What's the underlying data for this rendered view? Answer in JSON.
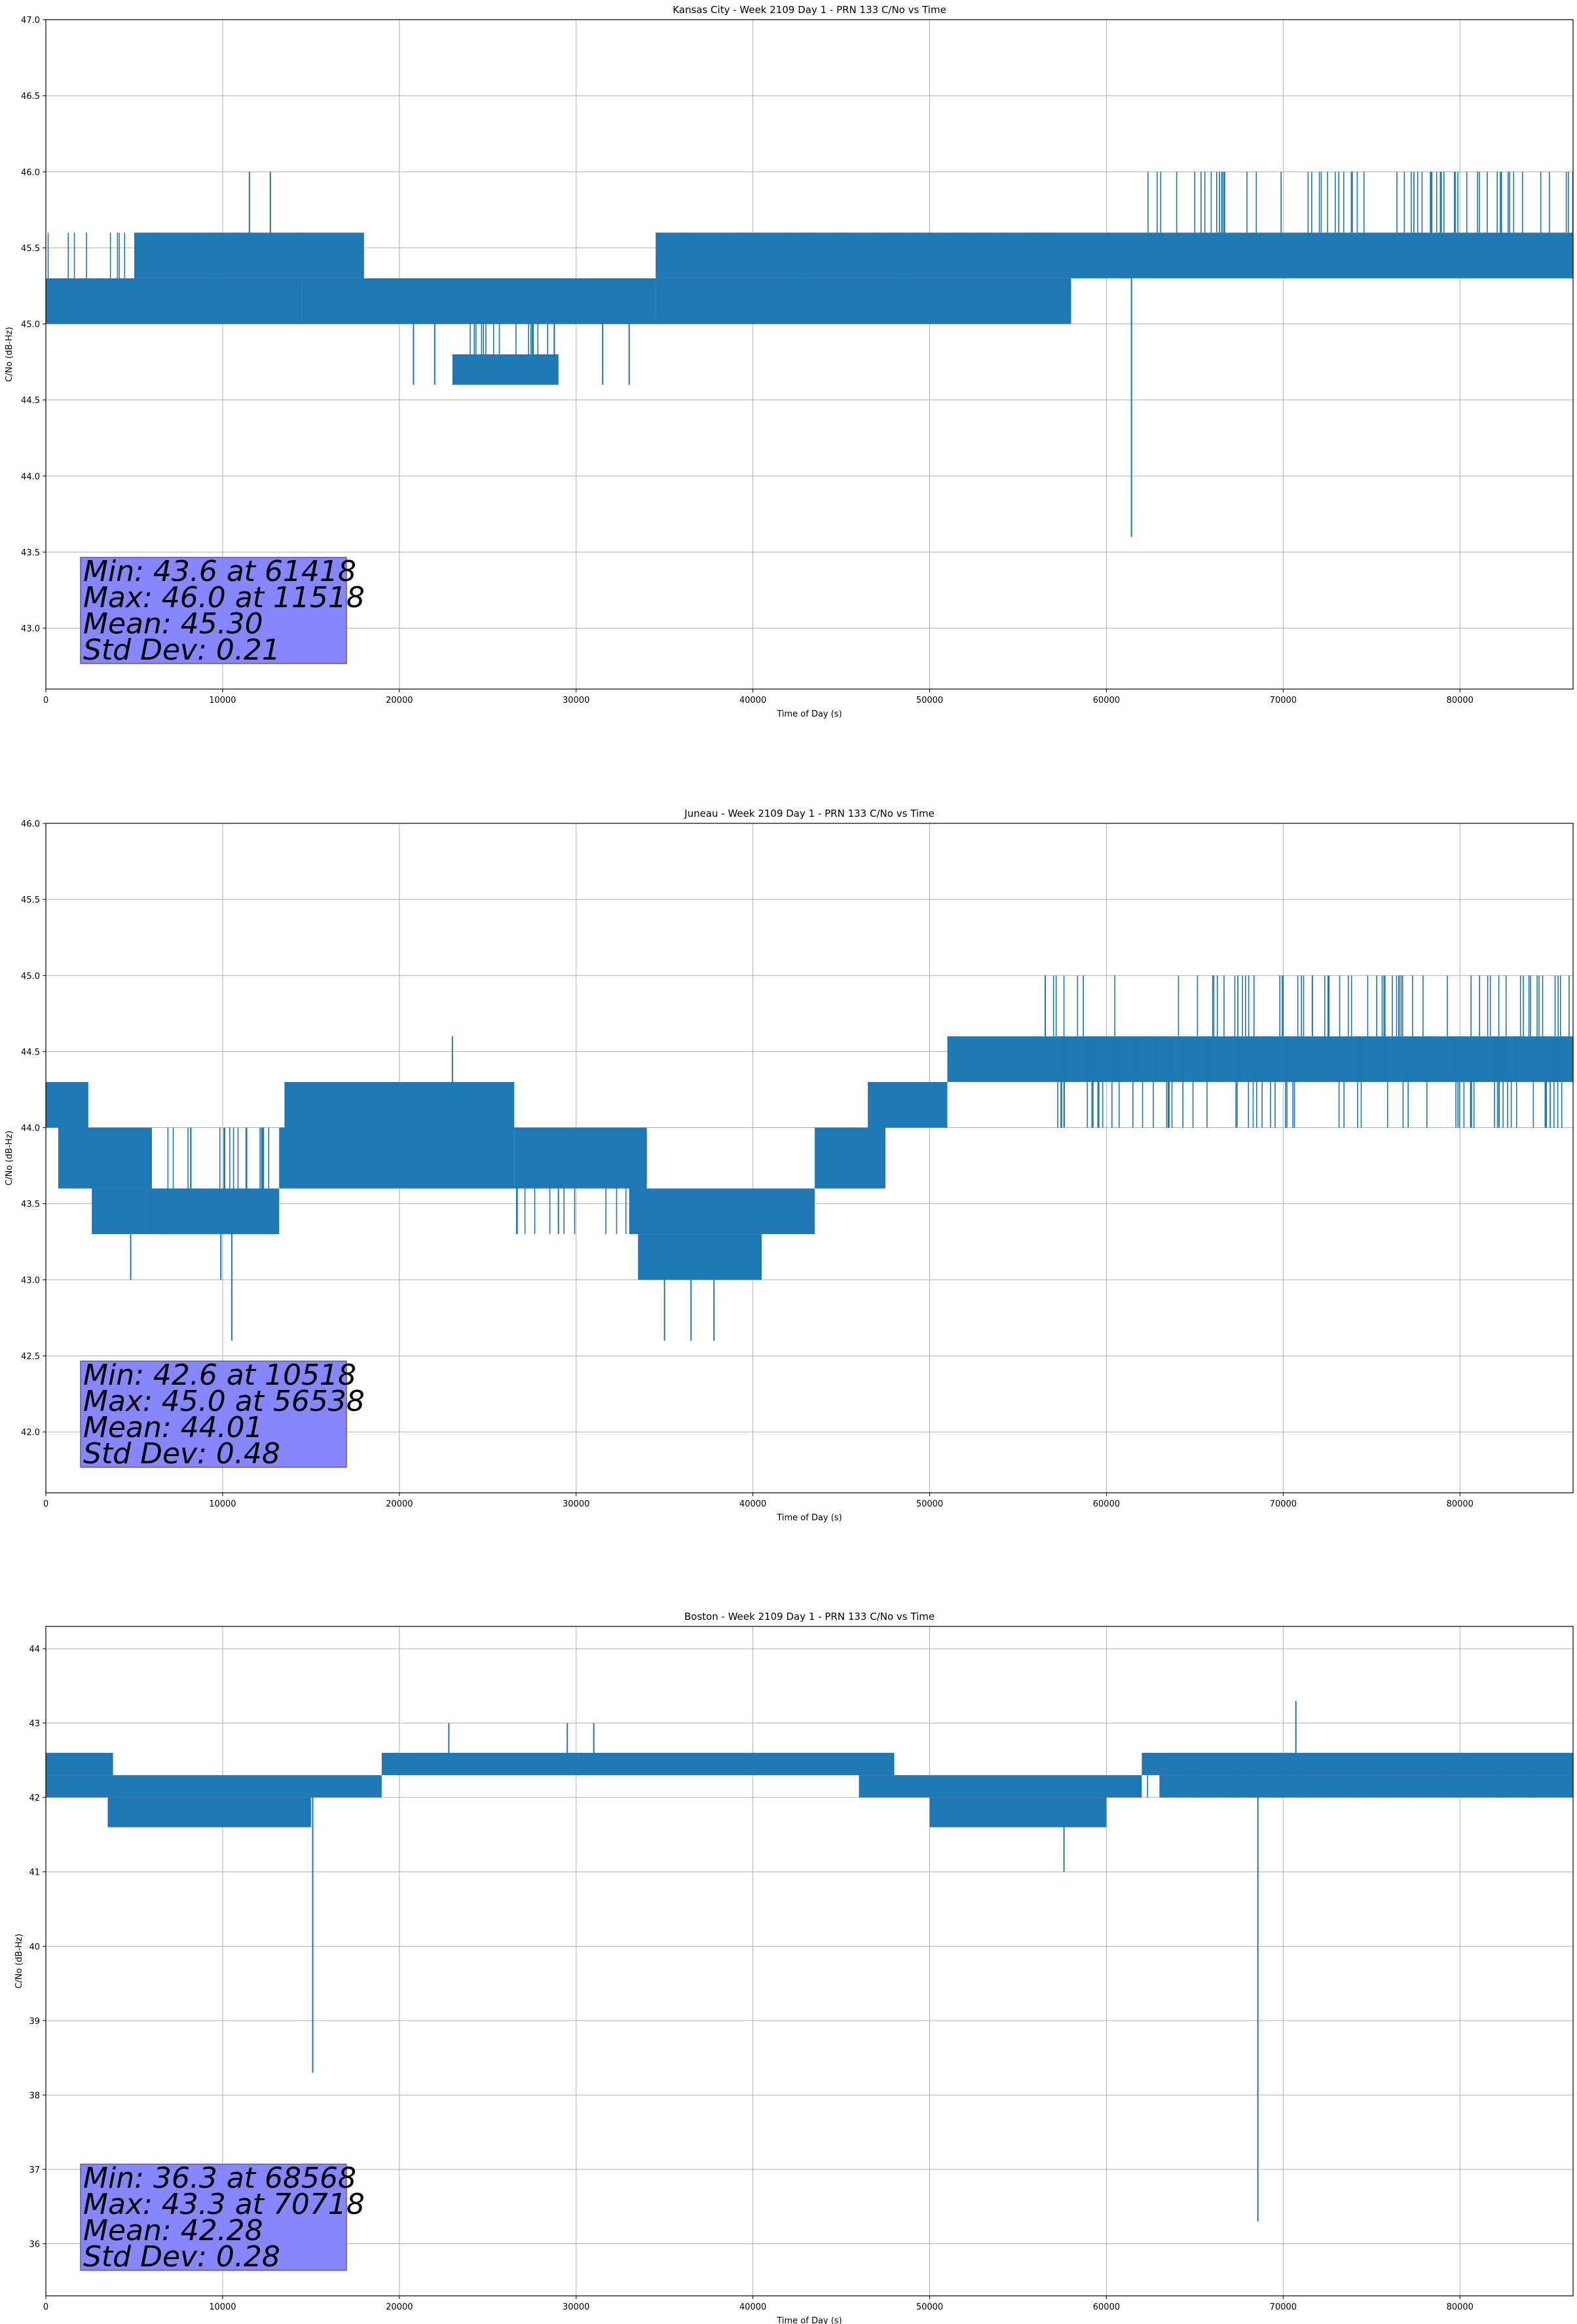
{
  "colors": {
    "series": "#1f77b4",
    "grid": "#b0b0b0",
    "stats_box": "#8080ff",
    "stats_box_edge": "#5a5aa0"
  },
  "chart_data": [
    {
      "type": "line",
      "title": "Kansas City - Week 2109 Day 1 - PRN 133 C/No vs Time",
      "xlabel": "Time of Day (s)",
      "ylabel": "C/No (dB-Hz)",
      "xlim": [
        0,
        86400
      ],
      "ylim": [
        42.6,
        47.0
      ],
      "xticks": [
        0,
        10000,
        20000,
        30000,
        40000,
        50000,
        60000,
        70000,
        80000
      ],
      "yticks": [
        "43.0",
        "43.5",
        "44.0",
        "44.5",
        "45.0",
        "45.5",
        "46.0",
        "46.5",
        "47.0"
      ],
      "grid": true,
      "series": [
        {
          "bands": [
            {
              "x": [
                0,
                14500
              ],
              "low": 45.0,
              "high": 45.6,
              "core_low": 45.0,
              "core_high": 45.3
            },
            {
              "x": [
                5000,
                18000
              ],
              "low": 45.3,
              "high": 45.6,
              "core_low": 45.3,
              "core_high": 45.6
            },
            {
              "x": [
                14500,
                34500
              ],
              "low": 45.0,
              "high": 45.3,
              "core_low": 45.0,
              "core_high": 45.3
            },
            {
              "x": [
                23000,
                29000
              ],
              "low": 44.6,
              "high": 45.0,
              "core_low": 44.6,
              "core_high": 44.8
            },
            {
              "x": [
                34500,
                58000
              ],
              "low": 45.0,
              "high": 45.6,
              "core_low": 45.0,
              "core_high": 45.3
            },
            {
              "x": [
                34500,
                58000
              ],
              "low": 45.3,
              "high": 45.6,
              "core_low": 45.3,
              "core_high": 45.6
            },
            {
              "x": [
                58000,
                86400
              ],
              "low": 45.3,
              "high": 45.6,
              "core_low": 45.3,
              "core_high": 45.6
            },
            {
              "x": [
                62000,
                86400
              ],
              "low": 45.6,
              "high": 46.0,
              "core_low": 45.6,
              "core_high": 45.6
            }
          ],
          "spikes": [
            {
              "x": 11518,
              "low": 45.3,
              "high": 46.0
            },
            {
              "x": 12700,
              "low": 45.3,
              "high": 46.0
            },
            {
              "x": 20800,
              "low": 44.6,
              "high": 45.0
            },
            {
              "x": 22000,
              "low": 44.6,
              "high": 45.0
            },
            {
              "x": 31500,
              "low": 44.6,
              "high": 45.0
            },
            {
              "x": 33000,
              "low": 44.6,
              "high": 45.0
            },
            {
              "x": 61418,
              "low": 43.6,
              "high": 45.3
            }
          ]
        }
      ],
      "stats": {
        "min": "Min: 43.6 at 61418",
        "max": "Max: 46.0 at 11518",
        "mean": "Mean: 45.30",
        "std": "Std Dev: 0.21"
      }
    },
    {
      "type": "line",
      "title": "Juneau - Week 2109 Day 1 - PRN 133 C/No vs Time",
      "xlabel": "Time of Day (s)",
      "ylabel": "C/No (dB-Hz)",
      "xlim": [
        0,
        86400
      ],
      "ylim": [
        41.6,
        46.0
      ],
      "xticks": [
        0,
        10000,
        20000,
        30000,
        40000,
        50000,
        60000,
        70000,
        80000
      ],
      "yticks": [
        "42.0",
        "42.5",
        "43.0",
        "43.5",
        "44.0",
        "44.5",
        "45.0",
        "45.5",
        "46.0"
      ],
      "grid": true,
      "series": [
        {
          "bands": [
            {
              "x": [
                0,
                2400
              ],
              "low": 44.0,
              "high": 44.3,
              "core_low": 44.0,
              "core_high": 44.3
            },
            {
              "x": [
                700,
                6000
              ],
              "low": 43.6,
              "high": 44.0,
              "core_low": 43.6,
              "core_high": 44.0
            },
            {
              "x": [
                2600,
                13200
              ],
              "low": 43.3,
              "high": 43.6,
              "core_low": 43.3,
              "core_high": 43.6
            },
            {
              "x": [
                6000,
                13000
              ],
              "low": 43.3,
              "high": 44.0,
              "core_low": 43.3,
              "core_high": 43.6
            },
            {
              "x": [
                13200,
                26500
              ],
              "low": 43.6,
              "high": 44.0,
              "core_low": 43.6,
              "core_high": 44.0
            },
            {
              "x": [
                13500,
                26500
              ],
              "low": 44.0,
              "high": 44.3,
              "core_low": 44.0,
              "core_high": 44.3
            },
            {
              "x": [
                26500,
                34000
              ],
              "low": 43.3,
              "high": 44.0,
              "core_low": 43.6,
              "core_high": 44.0
            },
            {
              "x": [
                33000,
                43500
              ],
              "low": 43.3,
              "high": 43.6,
              "core_low": 43.3,
              "core_high": 43.6
            },
            {
              "x": [
                33500,
                40500
              ],
              "low": 43.0,
              "high": 43.3,
              "core_low": 43.0,
              "core_high": 43.3
            },
            {
              "x": [
                43500,
                47500
              ],
              "low": 43.6,
              "high": 44.0,
              "core_low": 43.6,
              "core_high": 44.0
            },
            {
              "x": [
                46500,
                51000
              ],
              "low": 44.0,
              "high": 44.3,
              "core_low": 44.0,
              "core_high": 44.3
            },
            {
              "x": [
                51000,
                86400
              ],
              "low": 44.3,
              "high": 44.6,
              "core_low": 44.3,
              "core_high": 44.6
            },
            {
              "x": [
                56500,
                86400
              ],
              "low": 44.0,
              "high": 45.0,
              "core_low": 44.6,
              "core_high": 44.6
            }
          ],
          "spikes": [
            {
              "x": 10518,
              "low": 42.6,
              "high": 43.3
            },
            {
              "x": 9900,
              "low": 43.0,
              "high": 43.3
            },
            {
              "x": 4800,
              "low": 43.0,
              "high": 43.3
            },
            {
              "x": 23000,
              "low": 44.3,
              "high": 44.6
            },
            {
              "x": 35000,
              "low": 42.6,
              "high": 43.0
            },
            {
              "x": 36500,
              "low": 42.6,
              "high": 43.0
            },
            {
              "x": 37800,
              "low": 42.6,
              "high": 43.0
            },
            {
              "x": 56538,
              "low": 44.6,
              "high": 45.0
            }
          ]
        }
      ],
      "stats": {
        "min": "Min: 42.6 at 10518",
        "max": "Max: 45.0 at 56538",
        "mean": "Mean: 44.01",
        "std": "Std Dev: 0.48"
      }
    },
    {
      "type": "line",
      "title": "Boston - Week 2109 Day 1 - PRN 133 C/No vs Time",
      "xlabel": "Time of Day (s)",
      "ylabel": "C/No (dB-Hz)",
      "xlim": [
        0,
        86400
      ],
      "ylim": [
        35.3,
        44.3
      ],
      "xticks": [
        0,
        10000,
        20000,
        30000,
        40000,
        50000,
        60000,
        70000,
        80000
      ],
      "yticks": [
        "36",
        "37",
        "38",
        "39",
        "40",
        "41",
        "42",
        "43",
        "44"
      ],
      "grid": true,
      "series": [
        {
          "bands": [
            {
              "x": [
                0,
                19000
              ],
              "low": 42.0,
              "high": 42.3,
              "core_low": 42.0,
              "core_high": 42.3
            },
            {
              "x": [
                0,
                3800
              ],
              "low": 42.3,
              "high": 42.6,
              "core_low": 42.3,
              "core_high": 42.6
            },
            {
              "x": [
                3500,
                15000
              ],
              "low": 41.6,
              "high": 42.0,
              "core_low": 41.6,
              "core_high": 42.0
            },
            {
              "x": [
                19000,
                48000
              ],
              "low": 42.3,
              "high": 42.6,
              "core_low": 42.3,
              "core_high": 42.6
            },
            {
              "x": [
                46000,
                62000
              ],
              "low": 42.0,
              "high": 42.3,
              "core_low": 42.0,
              "core_high": 42.3
            },
            {
              "x": [
                50000,
                60000
              ],
              "low": 41.6,
              "high": 42.0,
              "core_low": 41.6,
              "core_high": 42.0
            },
            {
              "x": [
                62000,
                86400
              ],
              "low": 42.0,
              "high": 42.6,
              "core_low": 42.3,
              "core_high": 42.6
            },
            {
              "x": [
                63000,
                86400
              ],
              "low": 42.0,
              "high": 42.3,
              "core_low": 42.0,
              "core_high": 42.3
            }
          ],
          "spikes": [
            {
              "x": 15100,
              "low": 38.3,
              "high": 42.0
            },
            {
              "x": 22800,
              "low": 42.6,
              "high": 43.0
            },
            {
              "x": 29500,
              "low": 42.6,
              "high": 43.0
            },
            {
              "x": 31000,
              "low": 42.6,
              "high": 43.0
            },
            {
              "x": 57600,
              "low": 41.0,
              "high": 41.6
            },
            {
              "x": 68568,
              "low": 36.3,
              "high": 42.0
            },
            {
              "x": 70718,
              "low": 42.6,
              "high": 43.3
            }
          ]
        }
      ],
      "stats": {
        "min": "Min: 36.3 at 68568",
        "max": "Max: 43.3 at 70718",
        "mean": "Mean: 42.28",
        "std": "Std Dev: 0.28"
      }
    }
  ]
}
